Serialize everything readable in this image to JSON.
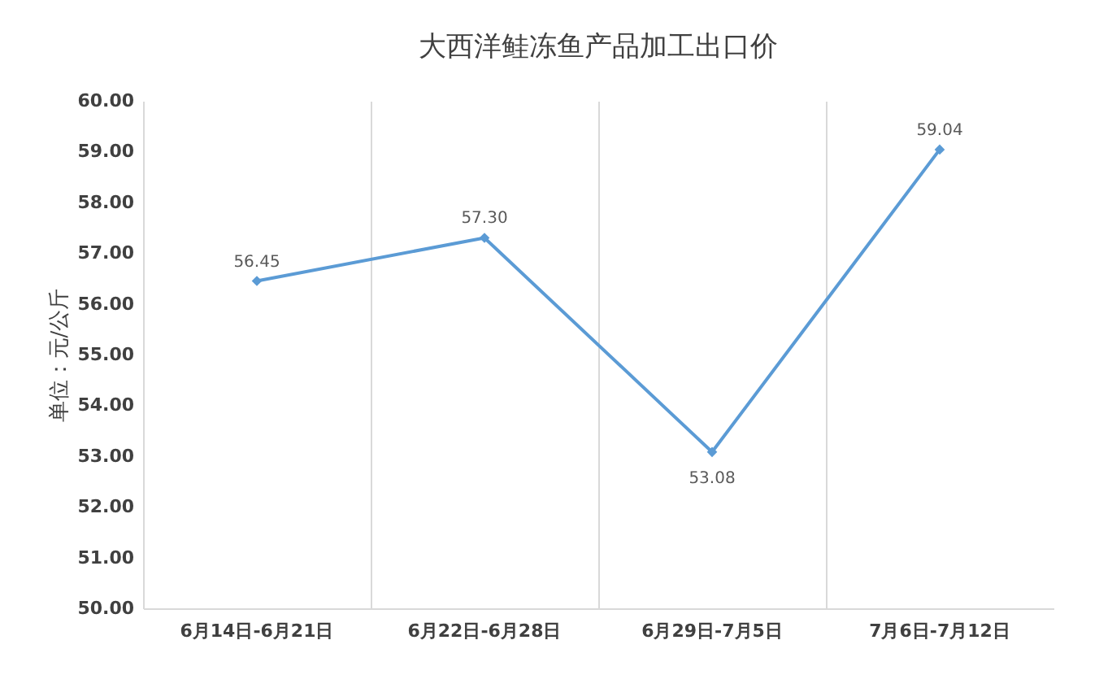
{
  "chart_data": {
    "type": "line",
    "title": "大西洋鲑冻鱼产品加工出口价",
    "ylabel": "单位：元/公斤",
    "categories": [
      "6月14日-6月21日",
      "6月22日-6月28日",
      "6月29日-7月5日",
      "7月6日-7月12日"
    ],
    "series": [
      {
        "color": "#5b9bd5",
        "values": [
          56.45,
          57.3,
          53.08,
          59.04
        ],
        "value_labels": [
          "56.45",
          "57.30",
          "53.08",
          "59.04"
        ]
      }
    ],
    "ylim": [
      50,
      60
    ],
    "yticks": [
      {
        "value": 50,
        "label": "50.00"
      },
      {
        "value": 51,
        "label": "51.00"
      },
      {
        "value": 52,
        "label": "52.00"
      },
      {
        "value": 53,
        "label": "53.00"
      },
      {
        "value": 54,
        "label": "54.00"
      },
      {
        "value": 55,
        "label": "55.00"
      },
      {
        "value": 56,
        "label": "56.00"
      },
      {
        "value": 57,
        "label": "57.00"
      },
      {
        "value": 58,
        "label": "58.00"
      },
      {
        "value": 59,
        "label": "59.00"
      },
      {
        "value": 60,
        "label": "60.00"
      }
    ],
    "grid": "x",
    "marker": "diamond",
    "line_style": "solid"
  }
}
